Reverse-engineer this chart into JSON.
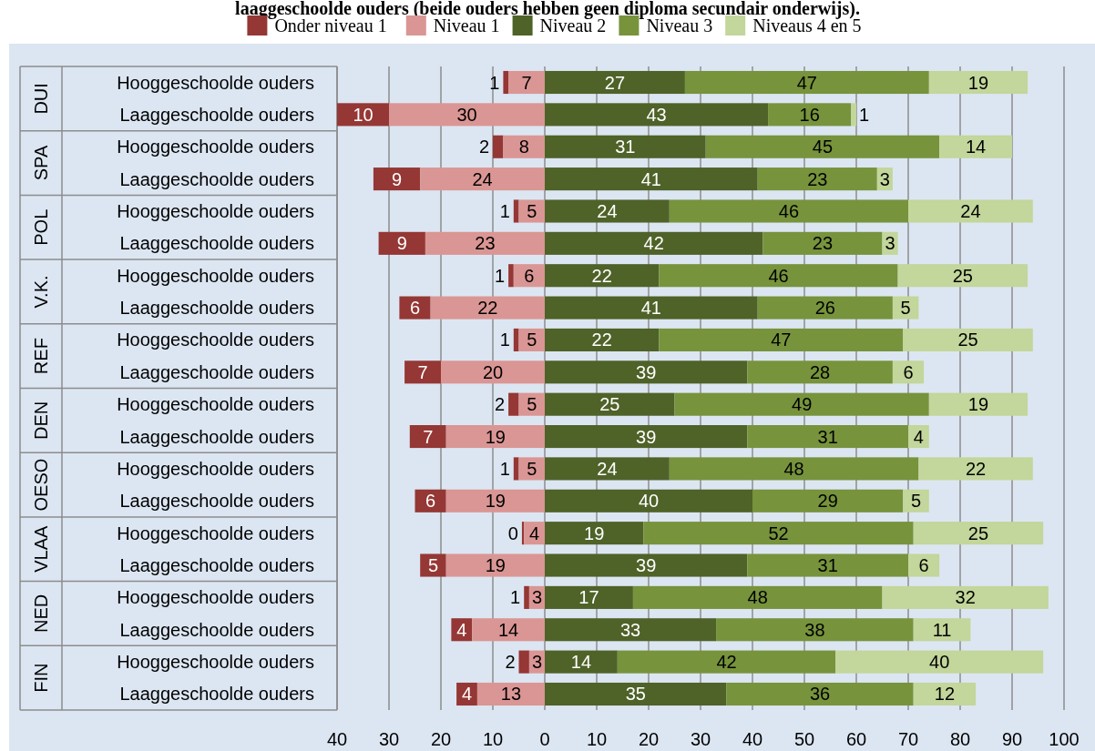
{
  "chart_data": {
    "type": "bar",
    "orientation": "horizontal",
    "title": "laaggeschoolde ouders (beide ouders hebben geen diploma secundair onderwijs).",
    "categories": [
      "Hooggeschoolde ouders",
      "Laaggeschoolde ouders",
      "Hooggeschoolde ouders",
      "Laaggeschoolde ouders",
      "Hooggeschoolde ouders",
      "Laaggeschoolde ouders",
      "Hooggeschoolde ouders",
      "Laaggeschoolde ouders",
      "Hooggeschoolde ouders",
      "Laaggeschoolde ouders",
      "Hooggeschoolde ouders",
      "Laaggeschoolde ouders",
      "Hooggeschoolde ouders",
      "Laaggeschoolde ouders",
      "Hooggeschoolde ouders",
      "Laaggeschoolde ouders",
      "Hooggeschoolde ouders",
      "Laaggeschoolde ouders",
      "Hooggeschoolde ouders",
      "Laaggeschoolde ouders"
    ],
    "annotations": [
      "DUI",
      "SPA",
      "POL",
      "V.K.",
      "REF",
      "DEN",
      "OESO",
      "VLAA",
      "NED",
      "FIN"
    ],
    "series": [
      {
        "name": "Onder niveau 1",
        "color": "#953735",
        "values": [
          1,
          10,
          2,
          9,
          1,
          9,
          1,
          6,
          1,
          7,
          2,
          7,
          1,
          6,
          0.4,
          5,
          1,
          4,
          2,
          4
        ],
        "base": [
          -8,
          -40,
          -10,
          -33,
          -6,
          -32,
          -7,
          -28,
          -6,
          -27,
          -7,
          -26,
          -6,
          -25,
          -4.4,
          -24,
          -4,
          -18,
          -5,
          -17
        ],
        "value_labels": [
          "1",
          "10",
          "2",
          "9",
          "1",
          "9",
          "1",
          "6",
          "1",
          "7",
          "2",
          "7",
          "1",
          "6",
          "0",
          "5",
          "1",
          "4",
          "2",
          "4"
        ]
      },
      {
        "name": "Niveau 1",
        "color": "#da9694",
        "values": [
          7,
          30,
          8,
          24,
          5,
          23,
          6,
          22,
          5,
          20,
          5,
          19,
          5,
          19,
          4,
          19,
          3,
          14,
          3,
          13
        ],
        "base": [
          -7,
          -30,
          -8,
          -24,
          -5,
          -23,
          -6,
          -22,
          -5,
          -20,
          -5,
          -19,
          -5,
          -19,
          -4,
          -19,
          -3,
          -14,
          -3,
          -13
        ]
      },
      {
        "name": "Niveau 2",
        "color": "#4f6228",
        "values": [
          27,
          43,
          31,
          41,
          24,
          42,
          22,
          41,
          22,
          39,
          25,
          39,
          24,
          40,
          19,
          39,
          17,
          33,
          14,
          35
        ],
        "base": [
          0,
          0,
          0,
          0,
          0,
          0,
          0,
          0,
          0,
          0,
          0,
          0,
          0,
          0,
          0,
          0,
          0,
          0,
          0,
          0
        ]
      },
      {
        "name": "Niveau 3",
        "color": "#77933c",
        "values": [
          47,
          16,
          45,
          23,
          46,
          23,
          46,
          26,
          47,
          28,
          49,
          31,
          48,
          29,
          52,
          31,
          48,
          38,
          42,
          36
        ],
        "base": [
          27,
          43,
          31,
          41,
          24,
          42,
          22,
          41,
          22,
          39,
          25,
          39,
          24,
          40,
          19,
          39,
          17,
          33,
          14,
          35
        ]
      },
      {
        "name": "Niveaus 4 en 5",
        "color": "#c3d69b",
        "values": [
          19,
          1,
          14,
          3,
          24,
          3,
          25,
          5,
          25,
          6,
          19,
          4,
          22,
          5,
          25,
          6,
          32,
          11,
          40,
          12
        ],
        "base": [
          74,
          59,
          76,
          64,
          70,
          65,
          68,
          67,
          69,
          67,
          74,
          70,
          72,
          69,
          71,
          70,
          65,
          71,
          56,
          71
        ]
      }
    ],
    "data_labels": true,
    "xlim": [
      -40,
      100
    ],
    "xticks": [
      {
        "value": -40,
        "label": "40"
      },
      {
        "value": -30,
        "label": "30"
      },
      {
        "value": -20,
        "label": "20"
      },
      {
        "value": -10,
        "label": "10"
      },
      0,
      10,
      20,
      30,
      40,
      50,
      60,
      70,
      80,
      90,
      100
    ],
    "grid": "x",
    "legend": "top"
  }
}
